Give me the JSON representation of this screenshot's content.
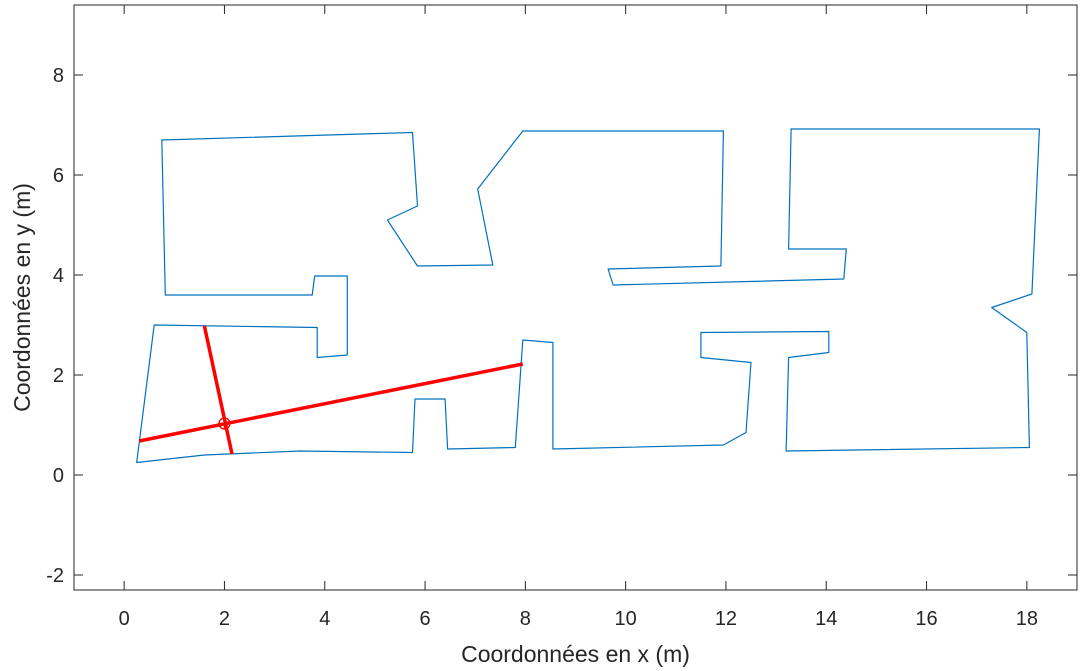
{
  "chart_data": {
    "type": "line",
    "xlabel": "Coordonnées en x (m)",
    "ylabel": "Coordonnées en y (m)",
    "xlim": [
      -1,
      19
    ],
    "ylim": [
      -2.3,
      9.4
    ],
    "xticks": [
      0,
      2,
      4,
      6,
      8,
      10,
      12,
      14,
      16,
      18
    ],
    "yticks": [
      -2,
      0,
      2,
      4,
      6,
      8
    ],
    "xtick_labels": [
      "0",
      "2",
      "4",
      "6",
      "8",
      "10",
      "12",
      "14",
      "16",
      "18"
    ],
    "ytick_labels": [
      "-2",
      "0",
      "2",
      "4",
      "6",
      "8"
    ],
    "grid": false,
    "series": [
      {
        "color": "#0072BD",
        "style": "thin-line",
        "closed": true,
        "x": [
          0.25,
          1.6,
          3.5,
          5.75,
          5.8,
          6.4,
          6.45,
          7.8,
          7.95,
          8.55,
          8.55,
          11.95,
          12.4,
          12.5,
          11.5,
          11.5,
          14.05,
          14.05,
          13.25,
          13.2,
          18.05,
          18.0,
          17.3,
          18.1,
          18.25,
          13.3,
          13.25,
          14.4,
          14.35,
          9.75,
          9.65,
          11.9,
          11.95,
          7.95,
          7.05,
          7.35,
          5.85,
          5.25,
          5.85,
          5.75,
          0.75,
          0.82,
          3.75,
          3.8,
          4.45,
          4.45,
          3.85,
          3.85,
          0.6
        ],
        "y": [
          0.25,
          0.4,
          0.48,
          0.45,
          1.52,
          1.52,
          0.52,
          0.55,
          2.7,
          2.65,
          0.52,
          0.6,
          0.85,
          2.25,
          2.35,
          2.85,
          2.87,
          2.45,
          2.35,
          0.48,
          0.55,
          2.85,
          3.35,
          3.62,
          6.92,
          6.92,
          4.52,
          4.52,
          3.92,
          3.8,
          4.12,
          4.18,
          6.88,
          6.88,
          5.72,
          4.2,
          4.18,
          5.1,
          5.38,
          6.85,
          6.7,
          3.6,
          3.6,
          3.98,
          3.98,
          2.4,
          2.35,
          2.95,
          3.0
        ]
      },
      {
        "color": "#FF0000",
        "style": "thick-line",
        "closed": false,
        "x": [
          0.3,
          7.95
        ],
        "y": [
          0.68,
          2.22
        ]
      },
      {
        "color": "#FF0000",
        "style": "thick-line",
        "closed": false,
        "x": [
          1.6,
          2.15
        ],
        "y": [
          2.98,
          0.42
        ]
      }
    ],
    "markers": [
      {
        "color": "#FF0000",
        "shape": "circle-plus",
        "x": 2.0,
        "y": 1.03
      }
    ]
  }
}
